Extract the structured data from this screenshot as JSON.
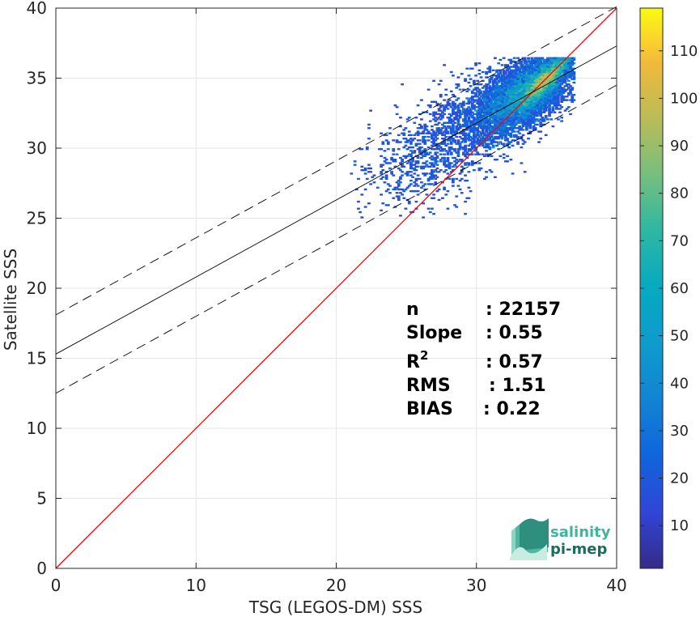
{
  "chart_data": {
    "type": "heatmap",
    "xlabel": "TSG (LEGOS-DM) SSS",
    "ylabel": "Satellite SSS",
    "xlim": [
      0,
      40
    ],
    "ylim": [
      0,
      40
    ],
    "x_ticks": [
      "0",
      "10",
      "20",
      "30",
      "40"
    ],
    "y_ticks": [
      "0",
      "5",
      "10",
      "15",
      "20",
      "25",
      "30",
      "35",
      "40"
    ],
    "grid": true,
    "colormap": "parula",
    "colorbar": {
      "range": [
        1,
        119
      ],
      "ticks": [
        "10",
        "20",
        "30",
        "40",
        "50",
        "60",
        "70",
        "80",
        "90",
        "100",
        "110"
      ],
      "placement": "right"
    },
    "lines": [
      {
        "name": "1:1 line",
        "color": "#ff0000",
        "style": "solid",
        "x": [
          0,
          40
        ],
        "y": [
          0,
          40
        ]
      },
      {
        "name": "regression fit",
        "color": "#000000",
        "style": "solid",
        "x": [
          0,
          40
        ],
        "y": [
          15.3,
          37.3
        ]
      },
      {
        "name": "fit + 3 RMS",
        "color": "#000000",
        "style": "dashed",
        "x": [
          0,
          40
        ],
        "y": [
          18.1,
          40.1
        ]
      },
      {
        "name": "fit - 3 RMS",
        "color": "#000000",
        "style": "dashed",
        "x": [
          0,
          40
        ],
        "y": [
          12.5,
          34.5
        ]
      }
    ],
    "density_region": {
      "x_range": [
        21,
        37
      ],
      "y_range": [
        25,
        36.5
      ],
      "peak": [
        35,
        35
      ],
      "peak_count": 119
    },
    "stats": [
      {
        "label": "n",
        "sup": "",
        "value": ": 22157"
      },
      {
        "label": "Slope",
        "sup": "",
        "value": ": 0.55"
      },
      {
        "label": "R",
        "sup": "2",
        "value": ": 0.57"
      },
      {
        "label": "RMS",
        "sup": "",
        "value": ": 1.51"
      },
      {
        "label": "BIAS",
        "sup": "",
        "value": ": 0.22"
      }
    ]
  },
  "logo": {
    "line1": "salinity",
    "line2": "pi-mep"
  }
}
